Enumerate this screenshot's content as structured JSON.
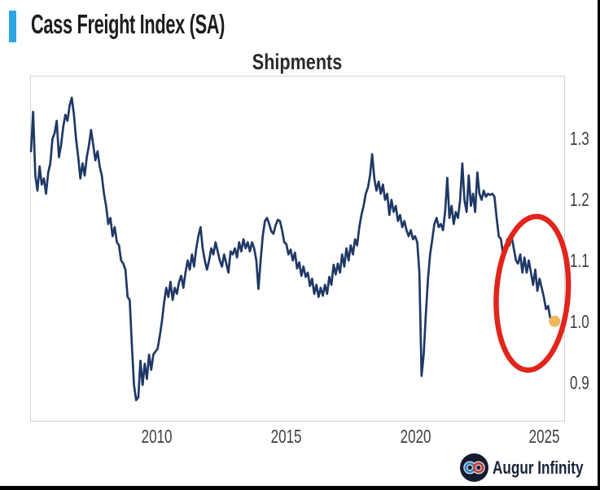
{
  "header": {
    "title": "Cass Freight Index (SA)",
    "accent_color": "#2ca6e2"
  },
  "chart_data": {
    "type": "line",
    "title": "Shipments",
    "xlabel": "",
    "ylabel": "",
    "grid": false,
    "legend": "none",
    "x_range": [
      2005.08,
      2025.79
    ],
    "y_range": [
      0.836,
      1.403
    ],
    "x_ticks": [
      2010,
      2015,
      2020,
      2025
    ],
    "y_ticks": [
      1.3,
      1.2,
      1.1,
      1.0,
      0.9
    ],
    "y_tick_labels": [
      "1.3",
      "1.2",
      "1.1",
      "1.0",
      "0.9"
    ],
    "line_color": "#1f3866",
    "series": [
      {
        "name": "Cass Freight Shipments Index (SA)",
        "frequency": "monthly",
        "start_year": 2005,
        "start_month": 2,
        "values": [
          1.28,
          1.345,
          1.24,
          1.215,
          1.255,
          1.225,
          1.235,
          1.21,
          1.245,
          1.26,
          1.3,
          1.31,
          1.33,
          1.27,
          1.29,
          1.32,
          1.34,
          1.33,
          1.355,
          1.368,
          1.34,
          1.3,
          1.27,
          1.235,
          1.26,
          1.24,
          1.27,
          1.29,
          1.315,
          1.29,
          1.265,
          1.28,
          1.255,
          1.24,
          1.21,
          1.19,
          1.16,
          1.17,
          1.14,
          1.155,
          1.13,
          1.125,
          1.1,
          1.095,
          1.085,
          1.04,
          1.035,
          0.96,
          0.895,
          0.87,
          0.875,
          0.935,
          0.895,
          0.93,
          0.905,
          0.945,
          0.92,
          0.945,
          0.95,
          0.955,
          0.975,
          1.0,
          1.03,
          1.055,
          1.04,
          1.065,
          1.035,
          1.055,
          1.045,
          1.065,
          1.075,
          1.055,
          1.08,
          1.1,
          1.085,
          1.11,
          1.09,
          1.12,
          1.14,
          1.155,
          1.12,
          1.1,
          1.085,
          1.1,
          1.12,
          1.11,
          1.13,
          1.115,
          1.1,
          1.09,
          1.11,
          1.095,
          1.08,
          1.115,
          1.11,
          1.12,
          1.105,
          1.13,
          1.115,
          1.135,
          1.12,
          1.13,
          1.115,
          1.13,
          1.12,
          1.1,
          1.053,
          1.1,
          1.14,
          1.165,
          1.17,
          1.16,
          1.148,
          1.144,
          1.158,
          1.167,
          1.165,
          1.15,
          1.13,
          1.127,
          1.11,
          1.118,
          1.1,
          1.113,
          1.087,
          1.097,
          1.075,
          1.09,
          1.073,
          1.08,
          1.058,
          1.07,
          1.045,
          1.06,
          1.04,
          1.055,
          1.042,
          1.06,
          1.045,
          1.073,
          1.06,
          1.093,
          1.077,
          1.095,
          1.08,
          1.11,
          1.09,
          1.12,
          1.1,
          1.125,
          1.11,
          1.135,
          1.125,
          1.155,
          1.175,
          1.19,
          1.21,
          1.22,
          1.24,
          1.275,
          1.235,
          1.215,
          1.23,
          1.21,
          1.225,
          1.2,
          1.21,
          1.175,
          1.2,
          1.18,
          1.19,
          1.165,
          1.175,
          1.155,
          1.165,
          1.15,
          1.14,
          1.15,
          1.135,
          1.14,
          1.13,
          1.08,
          0.91,
          0.945,
          1.01,
          1.07,
          1.11,
          1.135,
          1.16,
          1.17,
          1.155,
          1.16,
          1.15,
          1.18,
          1.236,
          1.17,
          1.19,
          1.16,
          1.18,
          1.17,
          1.2,
          1.26,
          1.2,
          1.18,
          1.24,
          1.19,
          1.21,
          1.18,
          1.245,
          1.21,
          1.2,
          1.215,
          1.205,
          1.21,
          1.208,
          1.21,
          1.205,
          1.17,
          1.14,
          1.135,
          1.11,
          1.12,
          1.135,
          1.125,
          1.14,
          1.12,
          1.1,
          1.095,
          1.11,
          1.08,
          1.105,
          1.08,
          1.1,
          1.08,
          1.06,
          1.085,
          1.05,
          1.07,
          1.055,
          1.04,
          1.02,
          1.025,
          1.005,
          1.003,
          1.0
        ]
      }
    ],
    "annotations": {
      "highlight_ellipse": {
        "center_x_year": 2024.55,
        "center_y_value": 1.046,
        "rx_years": 1.39,
        "ry_value": 0.1267,
        "rotation_deg": 4,
        "color": "#e1251b",
        "stroke_width": 6.5
      },
      "latest_dot": {
        "x_year": 2025.417,
        "y_value": 1.0,
        "radius": 7,
        "color": "#ecb859"
      }
    }
  },
  "footer": {
    "brand": "Augur Infinity",
    "logo_colors": {
      "circle_bg": "#131c31",
      "loop_outline": "#e8eef5",
      "left_loop": "#3c85c6",
      "right_loop": "#c2423a"
    }
  }
}
